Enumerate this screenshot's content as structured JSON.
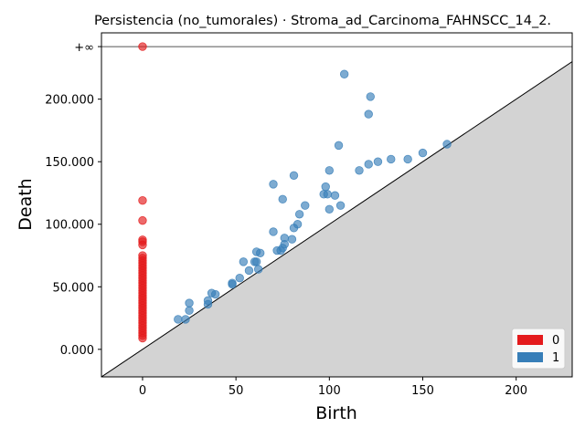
{
  "chart_data": {
    "type": "scatter",
    "title": "Persistencia (no_tumorales) · Stroma_ad_Carcinoma_FAHNSCC_14_2.",
    "xlabel": "Birth",
    "ylabel": "Death",
    "xlim": [
      -22,
      230
    ],
    "ylim": [
      -22000,
      253000
    ],
    "x_ticks": [
      0,
      50,
      100,
      150,
      200
    ],
    "x_tick_labels": [
      "0",
      "50",
      "100",
      "150",
      "200"
    ],
    "y_ticks": [
      0,
      50000,
      100000,
      150000,
      200000
    ],
    "y_tick_labels": [
      "0.000",
      "50.000",
      "100.000",
      "150.000",
      "200.000"
    ],
    "infinity_label": "+∞",
    "infinity_value": 242000,
    "grid": false,
    "legend_position": "lower-right",
    "colors": {
      "h0": "#e41a1c",
      "h1": "#377eb8",
      "diagonal_fill": "#d3d3d3"
    },
    "series": [
      {
        "name": "0",
        "color": "#e41a1c",
        "points": [
          [
            0,
            242000
          ],
          [
            0,
            119000
          ],
          [
            0,
            103000
          ],
          [
            0,
            87500
          ],
          [
            0,
            86000
          ],
          [
            0,
            83500
          ],
          [
            0,
            75000
          ],
          [
            0,
            73000
          ],
          [
            0,
            71000
          ],
          [
            0,
            69000
          ],
          [
            0,
            67000
          ],
          [
            0,
            65000
          ],
          [
            0,
            63000
          ],
          [
            0,
            61000
          ],
          [
            0,
            59000
          ],
          [
            0,
            57000
          ],
          [
            0,
            55000
          ],
          [
            0,
            53000
          ],
          [
            0,
            51000
          ],
          [
            0,
            49000
          ],
          [
            0,
            47000
          ],
          [
            0,
            45000
          ],
          [
            0,
            43000
          ],
          [
            0,
            41000
          ],
          [
            0,
            39000
          ],
          [
            0,
            37000
          ],
          [
            0,
            35000
          ],
          [
            0,
            33000
          ],
          [
            0,
            31000
          ],
          [
            0,
            29000
          ],
          [
            0,
            27000
          ],
          [
            0,
            25000
          ],
          [
            0,
            23000
          ],
          [
            0,
            21000
          ],
          [
            0,
            19000
          ],
          [
            0,
            17000
          ],
          [
            0,
            15000
          ],
          [
            0,
            13000
          ],
          [
            0,
            11000
          ],
          [
            0,
            9000
          ]
        ]
      },
      {
        "name": "1",
        "color": "#377eb8",
        "points": [
          [
            108,
            220000
          ],
          [
            122,
            202000
          ],
          [
            121,
            188000
          ],
          [
            163,
            164000
          ],
          [
            105,
            163000
          ],
          [
            150,
            157000
          ],
          [
            133,
            152000
          ],
          [
            142,
            152000
          ],
          [
            126,
            150000
          ],
          [
            121,
            148000
          ],
          [
            100,
            143000
          ],
          [
            116,
            143000
          ],
          [
            81,
            139000
          ],
          [
            70,
            132000
          ],
          [
            98,
            130000
          ],
          [
            97,
            124000
          ],
          [
            99,
            124000
          ],
          [
            103,
            123000
          ],
          [
            75,
            120000
          ],
          [
            106,
            115000
          ],
          [
            87,
            115000
          ],
          [
            100,
            112000
          ],
          [
            84,
            108000
          ],
          [
            83,
            100000
          ],
          [
            81,
            97000
          ],
          [
            70,
            94000
          ],
          [
            76,
            89000
          ],
          [
            80,
            88000
          ],
          [
            76,
            84000
          ],
          [
            75,
            81000
          ],
          [
            72,
            79000
          ],
          [
            74,
            79000
          ],
          [
            61,
            78000
          ],
          [
            63,
            77000
          ],
          [
            54,
            70000
          ],
          [
            60,
            70000
          ],
          [
            61,
            70000
          ],
          [
            57,
            63000
          ],
          [
            62,
            64000
          ],
          [
            52,
            57000
          ],
          [
            48,
            53000
          ],
          [
            48,
            52000
          ],
          [
            37,
            45000
          ],
          [
            39,
            44000
          ],
          [
            35,
            39000
          ],
          [
            25,
            37000
          ],
          [
            35,
            36000
          ],
          [
            25,
            31000
          ],
          [
            19,
            24000
          ],
          [
            23,
            24000
          ]
        ]
      }
    ]
  }
}
